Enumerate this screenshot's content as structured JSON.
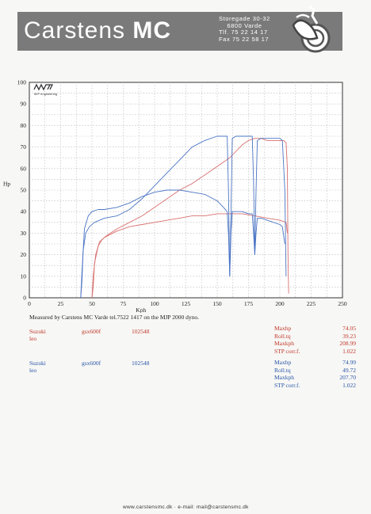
{
  "header": {
    "brand_light": "Carstens ",
    "brand_bold": "MC",
    "address": [
      "Storegade 30-32",
      "6800 Varde",
      "Tlf. 75 22 14 17",
      "Fax 75 22 58 17"
    ]
  },
  "chart_data": {
    "type": "line",
    "logo_text": "M/P engineering",
    "xlabel": "Kph",
    "ylabel": "Hp",
    "xlim": [
      0,
      250
    ],
    "ylim": [
      0,
      100
    ],
    "xticks": [
      0,
      25,
      50,
      75,
      100,
      125,
      150,
      175,
      200,
      225,
      250
    ],
    "yticks": [
      0,
      10,
      20,
      30,
      40,
      50,
      60,
      70,
      80,
      90,
      100
    ],
    "grid": true,
    "series": [
      {
        "color": "#d97070",
        "curve": "power",
        "x": [
          50,
          51,
          52,
          55,
          58,
          62,
          70,
          80,
          90,
          100,
          110,
          120,
          130,
          140,
          150,
          160,
          165,
          170,
          175,
          180,
          185,
          190,
          195,
          200,
          203,
          205,
          206,
          206.5,
          207
        ],
        "y": [
          0,
          5,
          16,
          24,
          27,
          29,
          32,
          35,
          38,
          42,
          46,
          50,
          53,
          57,
          61,
          65,
          68,
          71,
          73,
          74,
          74,
          73,
          73,
          73,
          73,
          72,
          60,
          20,
          2
        ]
      },
      {
        "color": "#d97070",
        "curve": "torque",
        "x": [
          50,
          51,
          53,
          56,
          60,
          70,
          80,
          90,
          100,
          110,
          120,
          130,
          140,
          150,
          160,
          170,
          180,
          190,
          200,
          205,
          206
        ],
        "y": [
          0,
          10,
          20,
          26,
          28,
          31,
          33,
          34,
          35,
          36,
          37,
          38,
          38,
          39,
          39,
          39,
          38,
          37,
          36,
          35,
          30
        ]
      },
      {
        "color": "#4a74c4",
        "curve": "power",
        "x": [
          41,
          42,
          43,
          45,
          48,
          52,
          60,
          70,
          80,
          90,
          100,
          110,
          120,
          130,
          140,
          150,
          155,
          158,
          159,
          160,
          161,
          162,
          165,
          170,
          175,
          178,
          179,
          180,
          181,
          182,
          185,
          190,
          195,
          200,
          202,
          204,
          205
        ],
        "y": [
          0,
          8,
          22,
          30,
          33,
          35,
          37,
          38,
          41,
          46,
          52,
          58,
          64,
          70,
          73,
          75,
          75,
          75,
          50,
          10,
          40,
          74,
          75,
          75,
          75,
          75,
          55,
          20,
          50,
          73,
          74,
          74,
          74,
          74,
          73,
          50,
          10
        ]
      },
      {
        "color": "#4a74c4",
        "curve": "torque",
        "x": [
          41,
          42,
          44,
          47,
          50,
          55,
          60,
          70,
          80,
          90,
          100,
          110,
          120,
          130,
          140,
          150,
          155,
          158,
          159,
          160,
          161,
          162,
          165,
          170,
          175,
          178,
          179,
          180,
          181,
          182,
          185,
          190,
          195,
          200,
          202,
          204
        ],
        "y": [
          0,
          12,
          32,
          38,
          40,
          41,
          41,
          42,
          44,
          47,
          49,
          50,
          50,
          49,
          48,
          45,
          42,
          40,
          30,
          10,
          30,
          40,
          40,
          40,
          39,
          39,
          30,
          20,
          30,
          37,
          37,
          36,
          35,
          34,
          33,
          25
        ]
      }
    ]
  },
  "measured": "Measured by Carstens MC Varde tel.7522 1417 on the MJP 2000 dyno.",
  "runs": [
    {
      "color": "#c0392b",
      "make": "Suzuki",
      "rider": "leo",
      "model": "gsx600f",
      "number": "102548",
      "stats": [
        {
          "k": "Maxhp",
          "v": "74.05"
        },
        {
          "k": "Roll.tq",
          "v": "39.23"
        },
        {
          "k": "Maxkph",
          "v": "208.99"
        },
        {
          "k": "STP corr.f.",
          "v": "1.022"
        }
      ]
    },
    {
      "color": "#2a57a8",
      "make": "Suzuki",
      "rider": "leo",
      "model": "gsx600f",
      "number": "102548",
      "stats": [
        {
          "k": "Maxhp",
          "v": "74.99"
        },
        {
          "k": "Roll.tq",
          "v": "49.72"
        },
        {
          "k": "Maxkph",
          "v": "207.70"
        },
        {
          "k": "STP corr.f.",
          "v": "1.022"
        }
      ]
    }
  ],
  "footer": "www.carstensmc.dk  ·  e-mail: mail@carstensmc.dk"
}
